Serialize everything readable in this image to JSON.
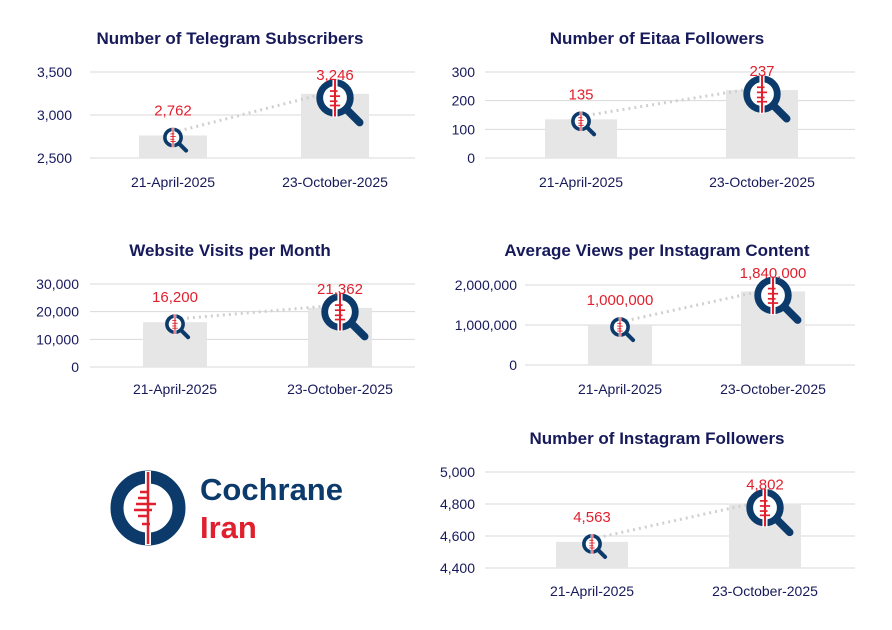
{
  "colors": {
    "title": "#16195a",
    "bar": "#e6e6e6",
    "data_label": "#e0202e",
    "grid": "#d9d9d9",
    "connector": "#d0d0d0",
    "icon_navy": "#0c3a6b",
    "icon_red": "#e0202e"
  },
  "chart_data": [
    {
      "type": "bar",
      "title": "Number of Telegram Subscribers",
      "categories": [
        "21-April-2025",
        "23-October-2025"
      ],
      "values": [
        2762,
        3246
      ],
      "labels": [
        "2,762",
        "3,246"
      ],
      "ylim": [
        2500,
        3500
      ],
      "yticks": [
        "2,500",
        "3,000",
        "3,500"
      ],
      "ytick_values": [
        2500,
        3000,
        3500
      ],
      "grid": true,
      "marker_icon": "cochrane-magnifier-icon"
    },
    {
      "type": "bar",
      "title": "Number of Eitaa Followers",
      "categories": [
        "21-April-2025",
        "23-October-2025"
      ],
      "values": [
        135,
        237
      ],
      "labels": [
        "135",
        "237"
      ],
      "ylim": [
        0,
        300
      ],
      "yticks": [
        "0",
        "100",
        "200",
        "300"
      ],
      "ytick_values": [
        0,
        100,
        200,
        300
      ],
      "grid": true,
      "marker_icon": "cochrane-magnifier-icon"
    },
    {
      "type": "bar",
      "title": "Website Visits per Month",
      "categories": [
        "21-April-2025",
        "23-October-2025"
      ],
      "values": [
        16200,
        21362
      ],
      "labels": [
        "16,200",
        "21,362"
      ],
      "ylim": [
        0,
        30000
      ],
      "yticks": [
        "0",
        "10,000",
        "20,000",
        "30,000"
      ],
      "ytick_values": [
        0,
        10000,
        20000,
        30000
      ],
      "grid": true,
      "marker_icon": "cochrane-magnifier-icon"
    },
    {
      "type": "bar",
      "title": "Average Views per Instagram Content",
      "categories": [
        "21-April-2025",
        "23-October-2025"
      ],
      "values": [
        1000000,
        1840000
      ],
      "labels": [
        "1,000,000",
        "1,840,000"
      ],
      "ylim": [
        0,
        2000000
      ],
      "yticks": [
        "0",
        "1,000,000",
        "2,000,000"
      ],
      "ytick_values": [
        0,
        1000000,
        2000000
      ],
      "grid": true,
      "marker_icon": "cochrane-magnifier-icon"
    },
    {
      "type": "bar",
      "title": "Number of Instagram Followers",
      "categories": [
        "21-April-2025",
        "23-October-2025"
      ],
      "values": [
        4563,
        4802
      ],
      "labels": [
        "4,563",
        "4,802"
      ],
      "ylim": [
        4400,
        5000
      ],
      "yticks": [
        "4,400",
        "4,600",
        "4,800",
        "5,000"
      ],
      "ytick_values": [
        4400,
        4600,
        4800,
        5000
      ],
      "grid": true,
      "marker_icon": "cochrane-magnifier-icon"
    }
  ],
  "logo": {
    "line1": "Cochrane",
    "line2": "Iran"
  }
}
